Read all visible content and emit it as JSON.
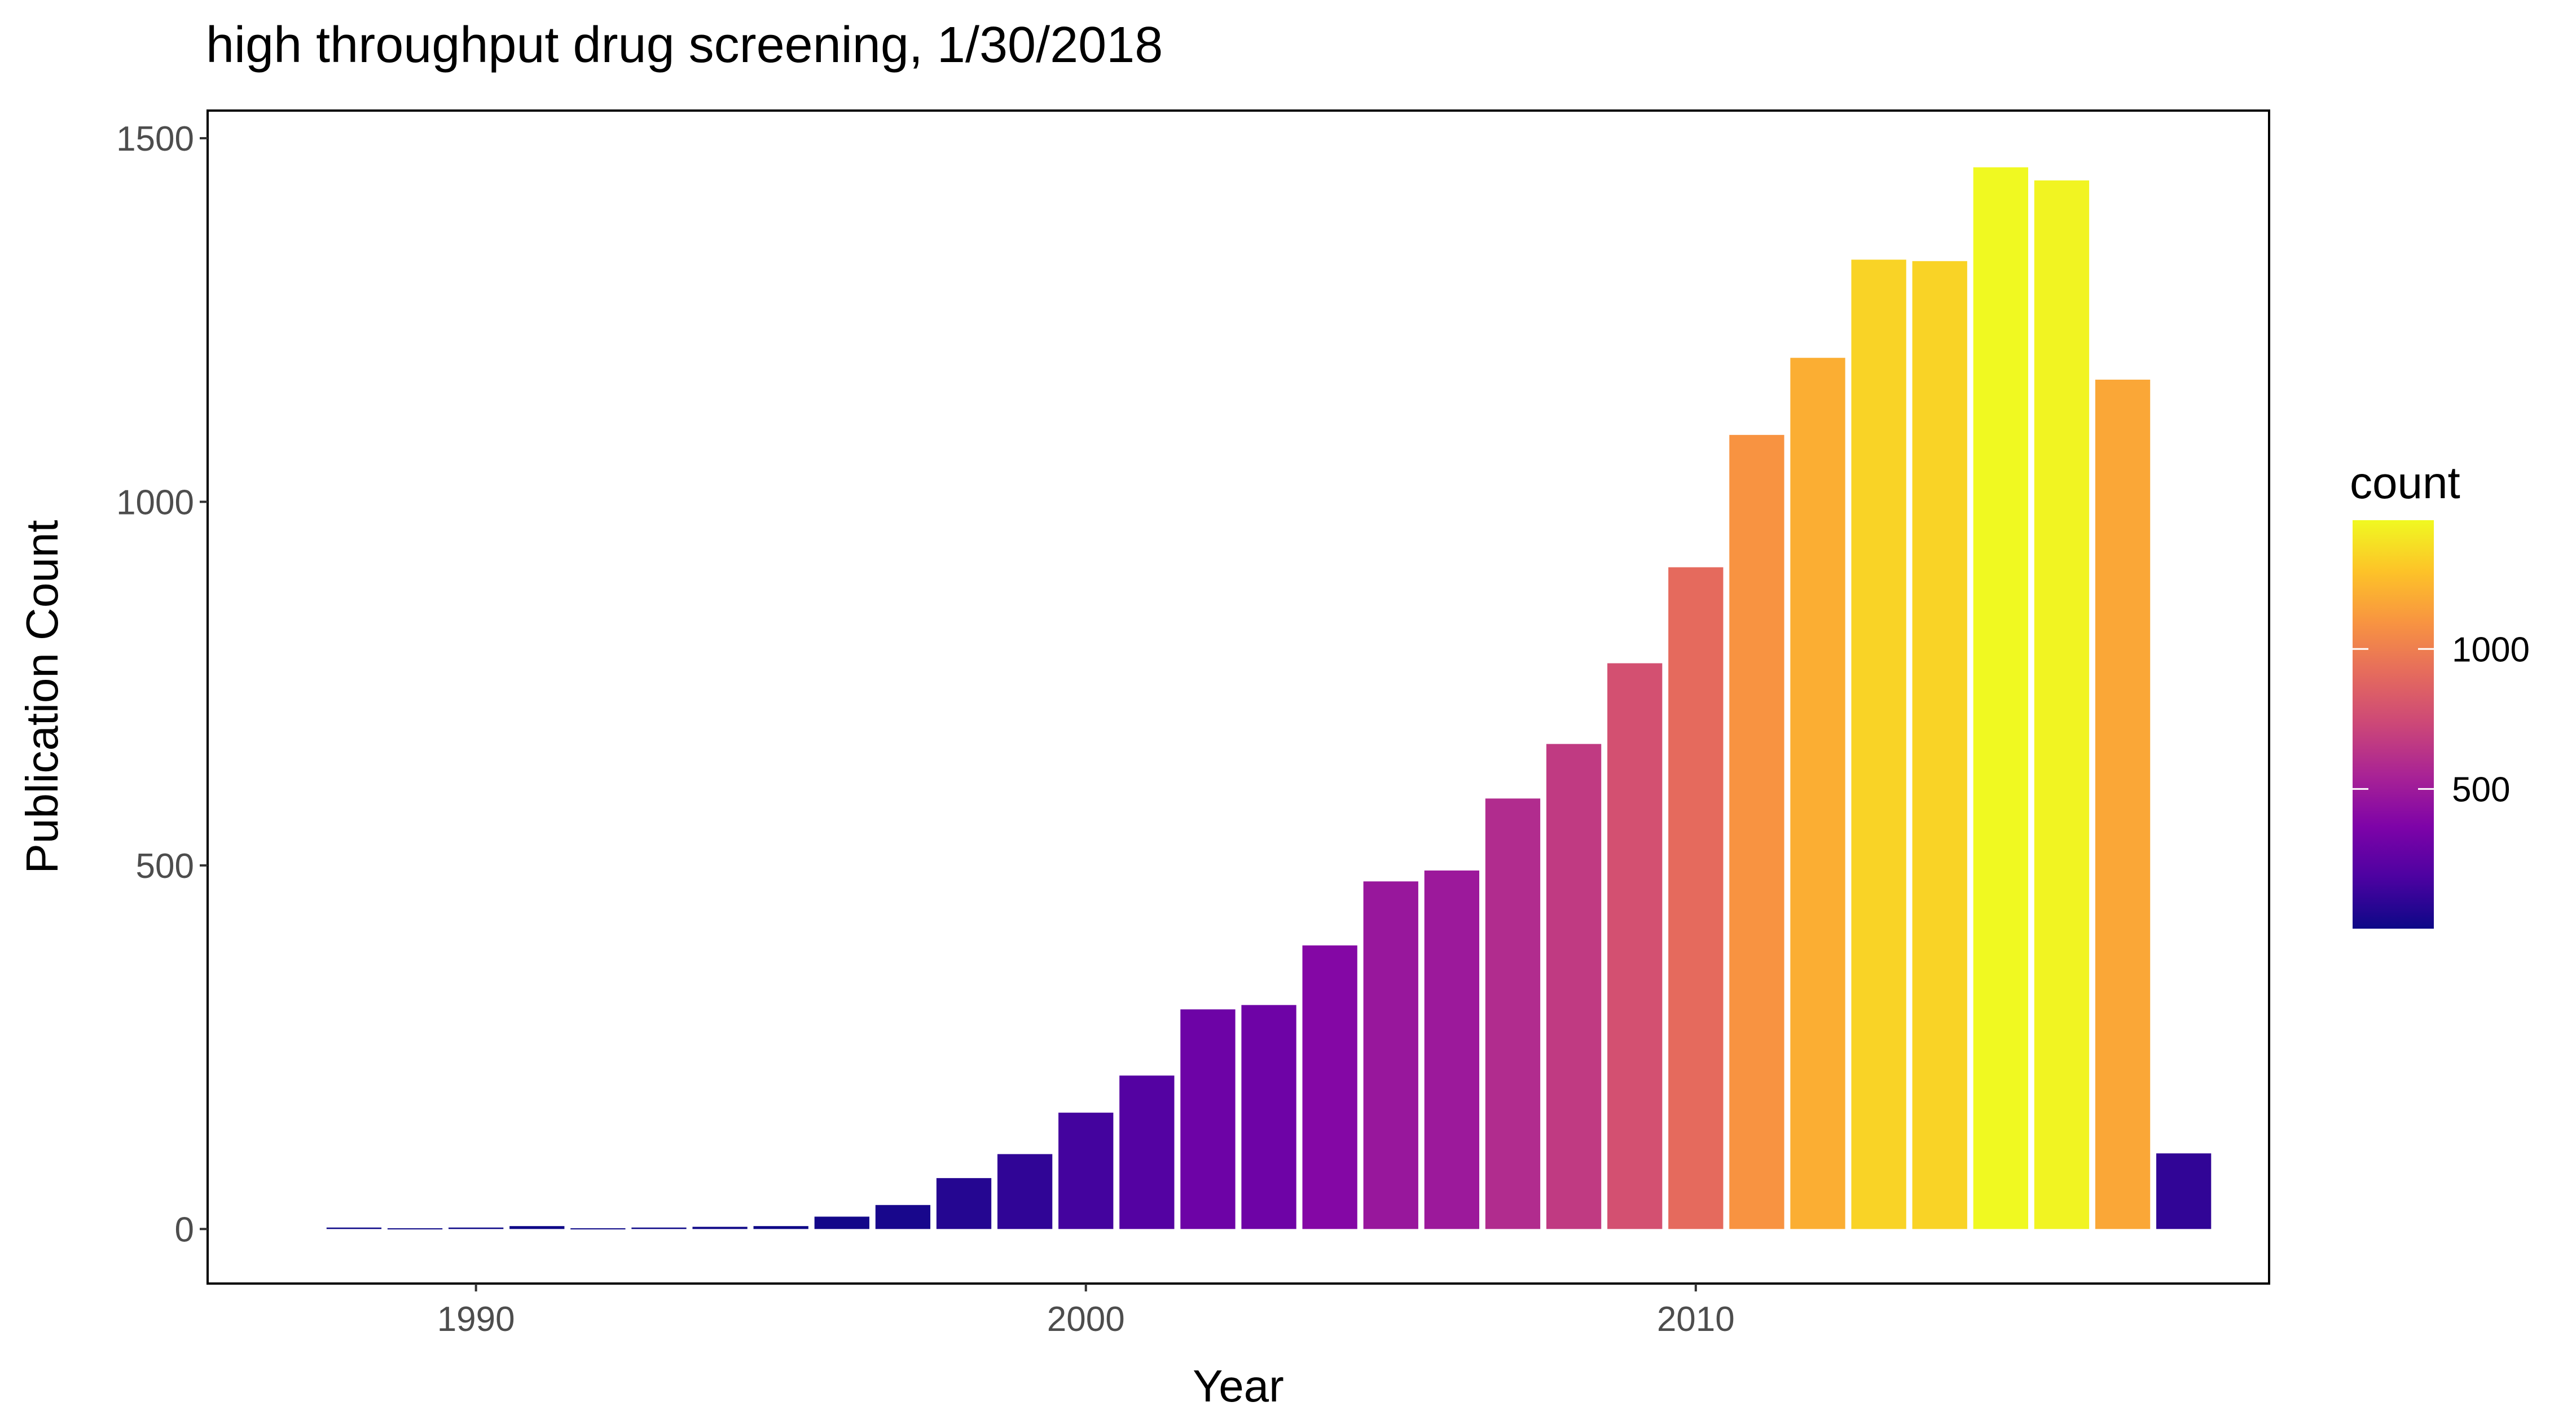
{
  "chart_data": {
    "type": "bar",
    "title": "high throughput drug screening, 1/30/2018",
    "xlabel": "Year",
    "ylabel": "Publication Count",
    "x": [
      1988,
      1989,
      1990,
      1991,
      1992,
      1993,
      1994,
      1995,
      1996,
      1997,
      1998,
      1999,
      2000,
      2001,
      2002,
      2003,
      2004,
      2005,
      2006,
      2007,
      2008,
      2009,
      2010,
      2011,
      2012,
      2013,
      2014,
      2015,
      2016,
      2017,
      2018
    ],
    "values": [
      2,
      1,
      2,
      4,
      1,
      2,
      3,
      4,
      17,
      33,
      70,
      103,
      160,
      211,
      302,
      308,
      390,
      478,
      493,
      592,
      667,
      778,
      910,
      1092,
      1198,
      1333,
      1331,
      1460,
      1442,
      1168,
      104
    ],
    "xlim": [
      1985.6,
      2019.4
    ],
    "ylim": [
      -75,
      1538
    ],
    "xticks": [
      1990,
      2000,
      2010
    ],
    "yticks": [
      0,
      500,
      1000,
      1500
    ],
    "grid": false,
    "panel_border": true,
    "bar_fill_scale": "plasma",
    "legend": {
      "title": "count",
      "position": "right",
      "min": 1,
      "max": 1460,
      "ticks": [
        500,
        1000
      ],
      "low_color": "#0d0887",
      "high_color": "#f0f921"
    }
  }
}
